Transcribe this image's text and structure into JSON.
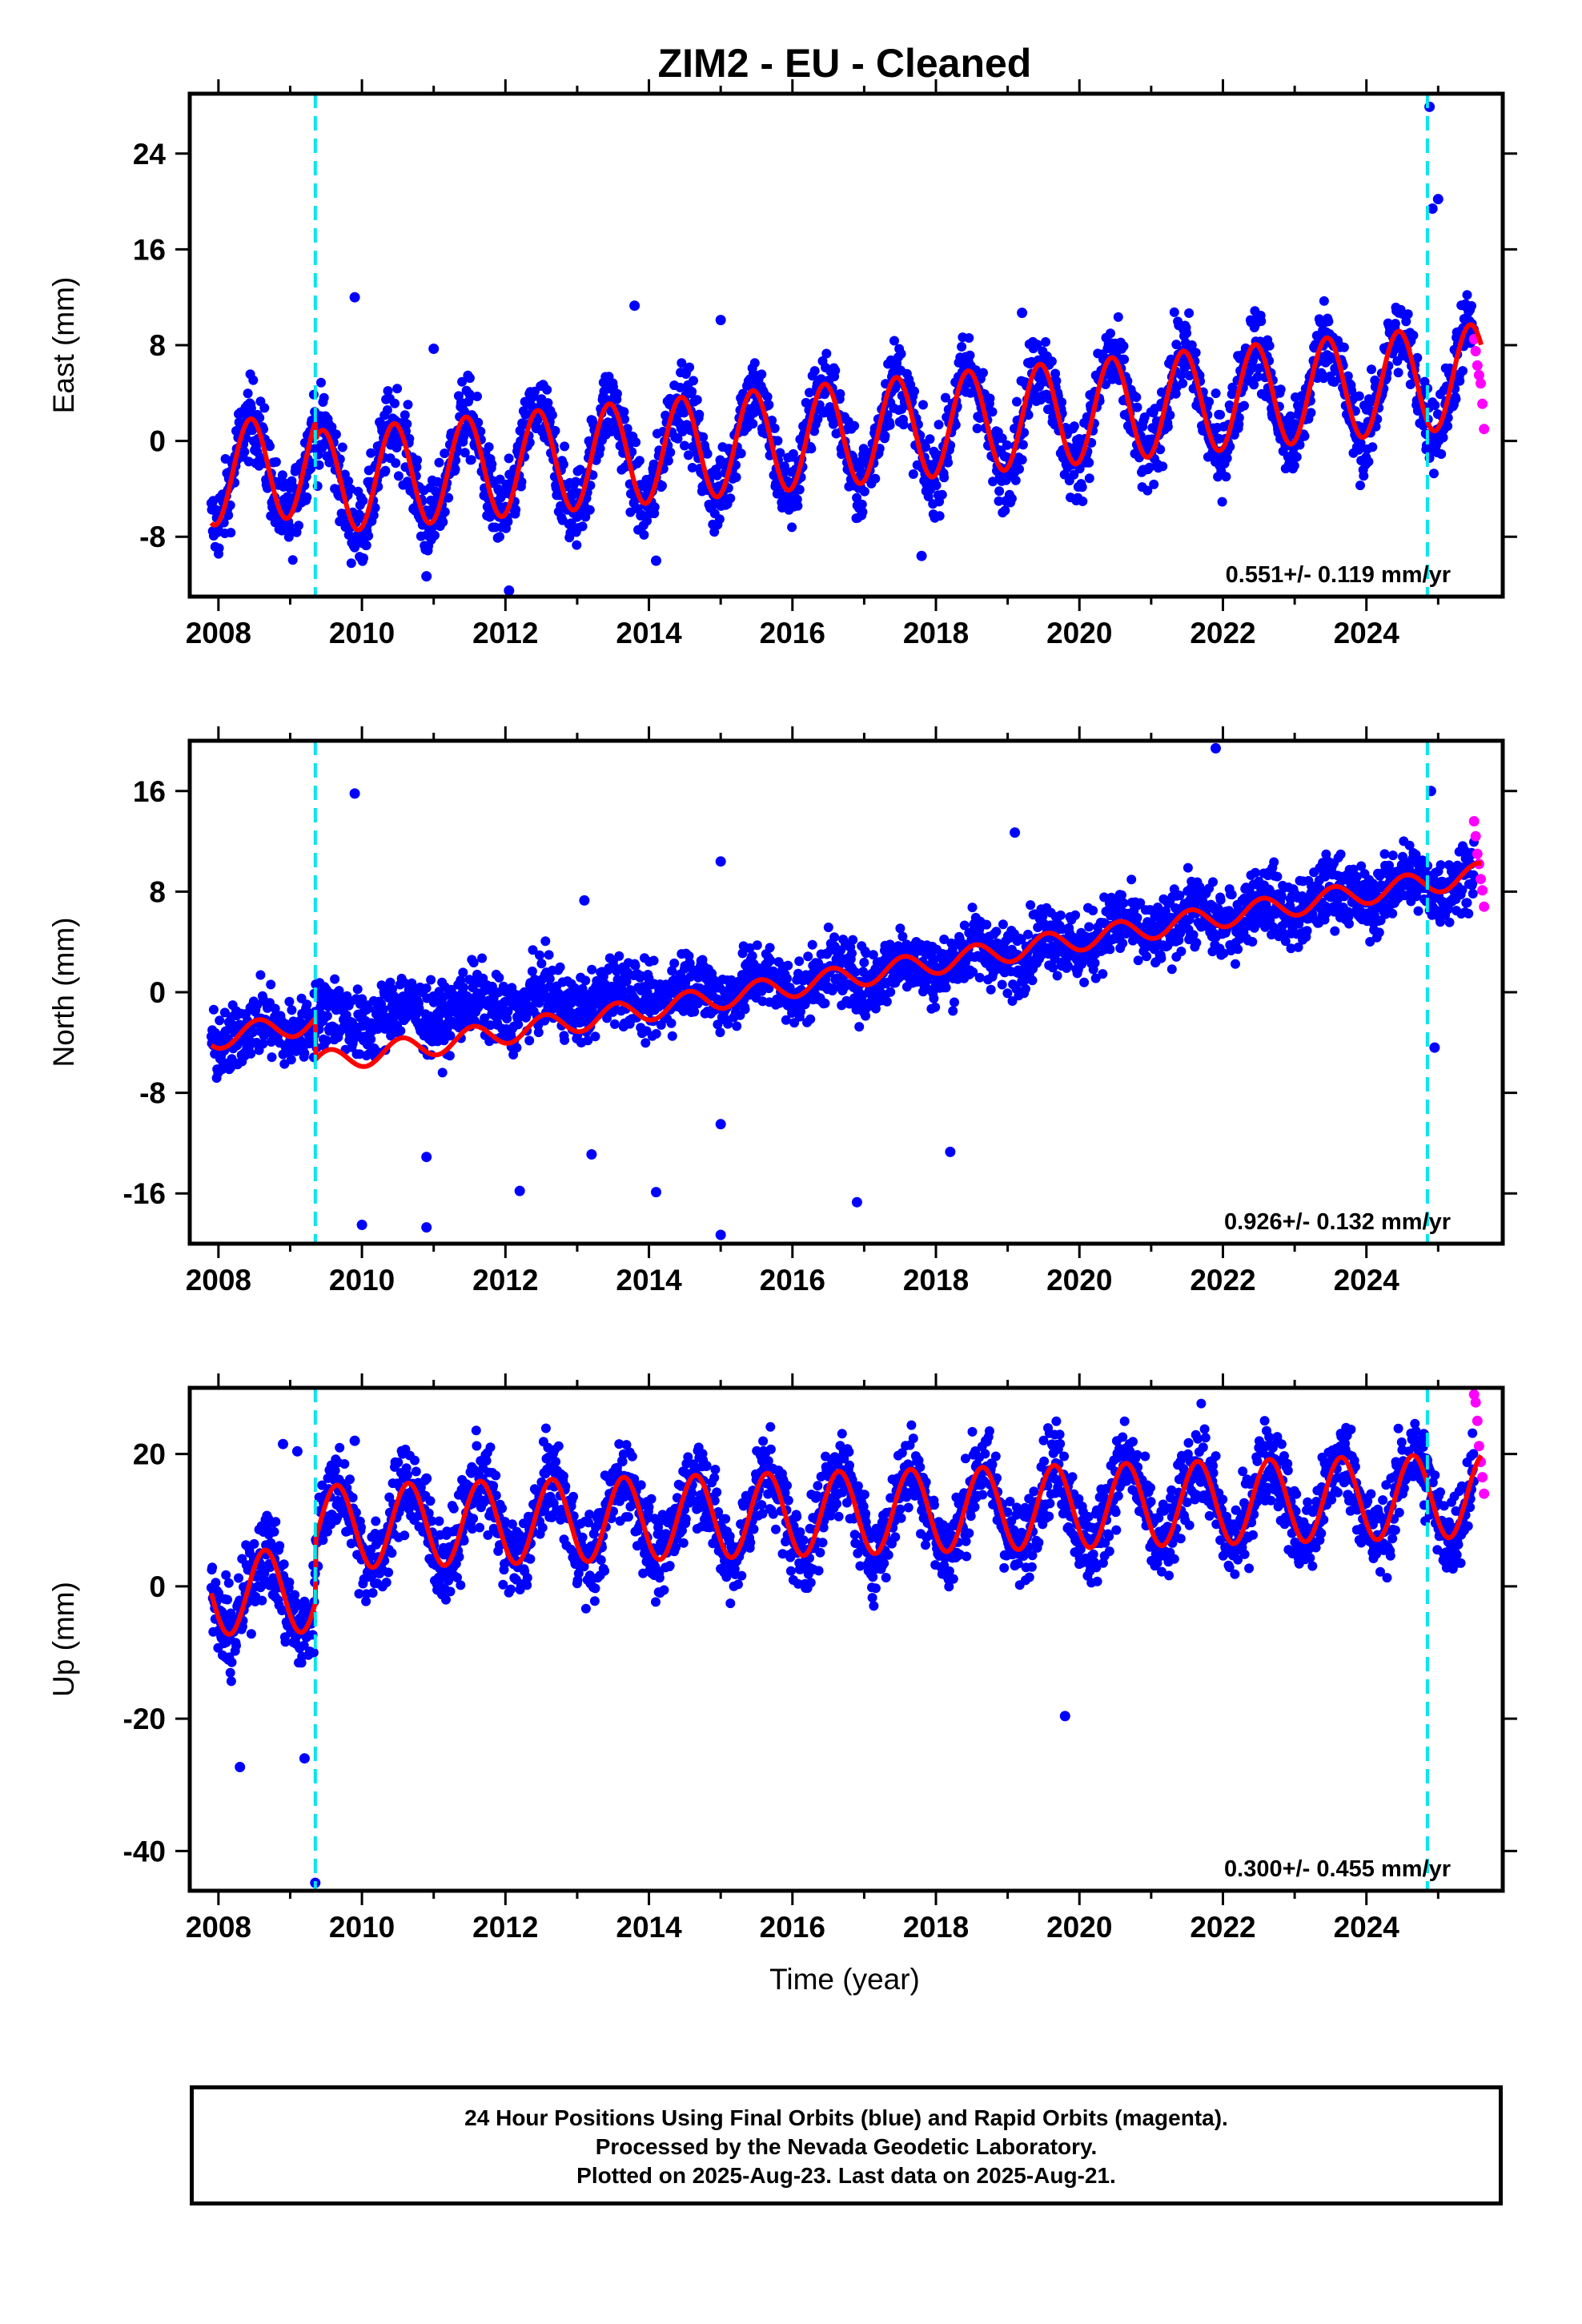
{
  "title": "ZIM2  - EU - Cleaned",
  "xlabel": "Time (year)",
  "x_ticks": [
    "2008",
    "2010",
    "2012",
    "2014",
    "2016",
    "2018",
    "2020",
    "2022",
    "2024"
  ],
  "caption": {
    "line1": "24 Hour Positions Using Final Orbits (blue) and Rapid Orbits (magenta).",
    "line2": "Processed by the Nevada Geodetic Laboratory.",
    "line3": "Plotted on 2025-Aug-23. Last data on 2025-Aug-21."
  },
  "colors": {
    "final_orbits": "#0000ff",
    "rapid_orbits": "#ff00ff",
    "model_fit": "#ff0000",
    "equipment_change": "#00e5ee"
  },
  "chart_data": [
    {
      "type": "scatter",
      "component": "east",
      "ylabel": "East (mm)",
      "xlim": [
        2007.6,
        2025.9
      ],
      "ylim": [
        -13,
        29
      ],
      "y_ticks": [
        "24",
        "16",
        "8",
        "0",
        "-8"
      ],
      "y_tick_values": [
        24,
        16,
        8,
        0,
        -8
      ],
      "rate_label": "0.551+/- 0.119 mm/yr",
      "equipment_changes": [
        2009.35,
        2024.85
      ],
      "model": {
        "offset_at_2008": -2.7,
        "trend": 0.551,
        "annual_amplitude": 4.3,
        "annual_peak_fraction": 0.45,
        "step_at_first_change": -1.5
      },
      "series": [
        {
          "name": "Final Orbits",
          "color": "#0000ff",
          "x_range": [
            2007.9,
            2025.5
          ],
          "scatter": 2.3
        },
        {
          "name": "Rapid Orbits",
          "color": "#ff00ff",
          "x_range": [
            2025.5,
            2025.64
          ],
          "values": [
            8.5,
            7.5,
            6.3,
            5.5,
            4.8,
            3.1,
            1.0
          ]
        }
      ],
      "outliers": [
        {
          "x": 2009.9,
          "y": 12.0
        },
        {
          "x": 2010.9,
          "y": -11.3
        },
        {
          "x": 2011.0,
          "y": 7.7
        },
        {
          "x": 2013.8,
          "y": 11.3
        },
        {
          "x": 2015.0,
          "y": 10.1
        },
        {
          "x": 2019.2,
          "y": 10.7
        },
        {
          "x": 2024.88,
          "y": 27.9
        },
        {
          "x": 2024.92,
          "y": 19.4
        },
        {
          "x": 2025.0,
          "y": 20.2
        },
        {
          "x": 2012.05,
          "y": -12.5
        },
        {
          "x": 2014.1,
          "y": -10.0
        },
        {
          "x": 2017.8,
          "y": -9.6
        }
      ]
    },
    {
      "type": "scatter",
      "component": "north",
      "ylabel": "North (mm)",
      "xlim": [
        2007.6,
        2025.9
      ],
      "ylim": [
        -20,
        20
      ],
      "y_ticks": [
        "16",
        "8",
        "0",
        "-8",
        "-16"
      ],
      "y_tick_values": [
        16,
        8,
        0,
        -8,
        -16
      ],
      "rate_label": "0.926+/- 0.132 mm/yr",
      "equipment_changes": [
        2009.35,
        2024.85
      ],
      "model": {
        "offset_at_2008": -3.6,
        "trend": 0.926,
        "annual_amplitude": 0.9,
        "annual_peak_fraction": 0.55,
        "step_at_first_change": -3.3
      },
      "series": [
        {
          "name": "Final Orbits",
          "color": "#0000ff",
          "x_range": [
            2007.9,
            2025.5
          ],
          "scatter": 1.9
        },
        {
          "name": "Rapid Orbits",
          "color": "#ff00ff",
          "x_range": [
            2025.5,
            2025.64
          ],
          "values": [
            13.6,
            12.4,
            11.0,
            10.2,
            9.0,
            8.1,
            6.8
          ]
        }
      ],
      "outliers": [
        {
          "x": 2009.9,
          "y": 15.8
        },
        {
          "x": 2010.0,
          "y": -18.5
        },
        {
          "x": 2010.9,
          "y": -13.1
        },
        {
          "x": 2010.9,
          "y": -18.7
        },
        {
          "x": 2012.2,
          "y": -15.8
        },
        {
          "x": 2013.1,
          "y": 7.3
        },
        {
          "x": 2013.2,
          "y": -12.9
        },
        {
          "x": 2014.1,
          "y": -15.9
        },
        {
          "x": 2015.0,
          "y": 10.4
        },
        {
          "x": 2015.0,
          "y": -19.3
        },
        {
          "x": 2016.9,
          "y": -16.7
        },
        {
          "x": 2018.2,
          "y": -12.7
        },
        {
          "x": 2019.1,
          "y": 12.7
        },
        {
          "x": 2021.9,
          "y": 19.4
        },
        {
          "x": 2024.9,
          "y": 16.0
        },
        {
          "x": 2024.95,
          "y": -4.4
        },
        {
          "x": 2015.0,
          "y": -10.5
        }
      ]
    },
    {
      "type": "scatter",
      "component": "up",
      "ylabel": "Up (mm)",
      "xlim": [
        2007.6,
        2025.9
      ],
      "ylim": [
        -46,
        30
      ],
      "y_ticks": [
        "20",
        "0",
        "-20",
        "-40"
      ],
      "y_tick_values": [
        20,
        0,
        -20,
        -40
      ],
      "rate_label": "0.300+/- 0.455 mm/yr",
      "equipment_changes": [
        2009.35,
        2024.85
      ],
      "model": {
        "offset_at_2008": -1.0,
        "trend": 0.3,
        "annual_amplitude": 6.3,
        "annual_peak_fraction": 0.65,
        "step_at_first_change": 9.5
      },
      "series": [
        {
          "name": "Final Orbits",
          "color": "#0000ff",
          "x_range": [
            2007.9,
            2025.5
          ],
          "scatter": 4.5
        },
        {
          "name": "Rapid Orbits",
          "color": "#ff00ff",
          "x_range": [
            2025.5,
            2025.64
          ],
          "values": [
            29.0,
            27.8,
            25.0,
            21.2,
            18.8,
            16.5,
            14.0
          ]
        }
      ],
      "outliers": [
        {
          "x": 2009.35,
          "y": -44.8
        },
        {
          "x": 2008.9,
          "y": 21.5
        },
        {
          "x": 2009.1,
          "y": 20.4
        },
        {
          "x": 2009.9,
          "y": 22.0
        },
        {
          "x": 2010.9,
          "y": 16.3
        },
        {
          "x": 2014.8,
          "y": 18.2
        },
        {
          "x": 2019.8,
          "y": -19.6
        },
        {
          "x": 2024.8,
          "y": 23.0
        },
        {
          "x": 2008.3,
          "y": -27.3
        },
        {
          "x": 2009.2,
          "y": -26.0
        }
      ]
    }
  ]
}
